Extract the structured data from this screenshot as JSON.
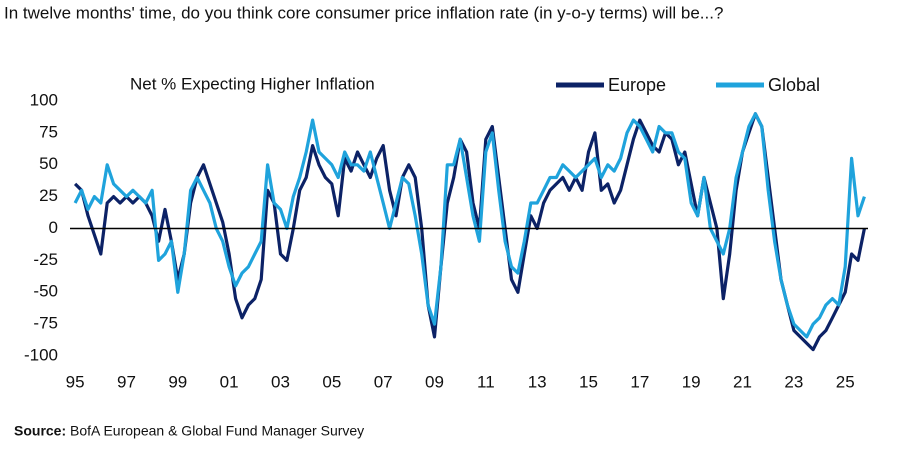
{
  "chart_data": {
    "type": "line",
    "title": "In twelve months' time, do you think core consumer price inflation rate (in y-o-y terms) will be...?",
    "subtitle": "Net % Expecting Higher Inflation",
    "source_label": "Source:",
    "source_text": "BofA European & Global Fund Manager Survey",
    "x": [
      1995,
      1995.25,
      1995.5,
      1995.75,
      1996,
      1996.25,
      1996.5,
      1996.75,
      1997,
      1997.25,
      1997.5,
      1997.75,
      1998,
      1998.25,
      1998.5,
      1998.75,
      1999,
      1999.25,
      1999.5,
      1999.75,
      2000,
      2000.25,
      2000.5,
      2000.75,
      2001,
      2001.25,
      2001.5,
      2001.75,
      2002,
      2002.25,
      2002.5,
      2002.75,
      2003,
      2003.25,
      2003.5,
      2003.75,
      2004,
      2004.25,
      2004.5,
      2004.75,
      2005,
      2005.25,
      2005.5,
      2005.75,
      2006,
      2006.25,
      2006.5,
      2006.75,
      2007,
      2007.25,
      2007.5,
      2007.75,
      2008,
      2008.25,
      2008.5,
      2008.75,
      2009,
      2009.25,
      2009.5,
      2009.75,
      2010,
      2010.25,
      2010.5,
      2010.75,
      2011,
      2011.25,
      2011.5,
      2011.75,
      2012,
      2012.25,
      2012.5,
      2012.75,
      2013,
      2013.25,
      2013.5,
      2013.75,
      2014,
      2014.25,
      2014.5,
      2014.75,
      2015,
      2015.25,
      2015.5,
      2015.75,
      2016,
      2016.25,
      2016.5,
      2016.75,
      2017,
      2017.25,
      2017.5,
      2017.75,
      2018,
      2018.25,
      2018.5,
      2018.75,
      2019,
      2019.25,
      2019.5,
      2019.75,
      2020,
      2020.25,
      2020.5,
      2020.75,
      2021,
      2021.25,
      2021.5,
      2021.75,
      2022,
      2022.25,
      2022.5,
      2022.75,
      2023,
      2023.25,
      2023.5,
      2023.75,
      2024,
      2024.25,
      2024.5,
      2024.75,
      2025,
      2025.25,
      2025.5,
      2025.75
    ],
    "series": [
      {
        "name": "Europe",
        "color": "#0c2266",
        "values": [
          35,
          30,
          10,
          -5,
          -20,
          20,
          25,
          20,
          25,
          20,
          25,
          20,
          10,
          -10,
          15,
          -10,
          -40,
          -20,
          20,
          40,
          50,
          35,
          20,
          5,
          -20,
          -55,
          -70,
          -60,
          -55,
          -40,
          30,
          20,
          -20,
          -25,
          0,
          30,
          40,
          65,
          50,
          40,
          35,
          10,
          55,
          45,
          60,
          50,
          40,
          55,
          65,
          30,
          10,
          40,
          50,
          40,
          0,
          -60,
          -85,
          -30,
          20,
          40,
          70,
          60,
          20,
          0,
          70,
          80,
          40,
          0,
          -40,
          -50,
          -20,
          10,
          0,
          20,
          30,
          35,
          40,
          30,
          40,
          30,
          60,
          75,
          30,
          35,
          20,
          30,
          50,
          70,
          85,
          75,
          65,
          60,
          75,
          70,
          50,
          60,
          35,
          10,
          40,
          20,
          0,
          -55,
          -20,
          30,
          60,
          75,
          90,
          80,
          40,
          0,
          -40,
          -60,
          -80,
          -85,
          -90,
          -95,
          -85,
          -80,
          -70,
          -60,
          -50,
          -20,
          -25,
          0
        ]
      },
      {
        "name": "Global",
        "color": "#1fa3dc",
        "values": [
          20,
          30,
          15,
          25,
          20,
          50,
          35,
          30,
          25,
          30,
          25,
          20,
          30,
          -25,
          -20,
          -10,
          -50,
          -20,
          30,
          40,
          30,
          20,
          0,
          -10,
          -30,
          -45,
          -35,
          -30,
          -20,
          -10,
          50,
          20,
          15,
          0,
          25,
          40,
          60,
          85,
          60,
          55,
          50,
          40,
          60,
          50,
          50,
          45,
          60,
          40,
          20,
          0,
          20,
          40,
          35,
          10,
          -20,
          -60,
          -75,
          -30,
          50,
          50,
          70,
          40,
          10,
          -10,
          60,
          75,
          30,
          -10,
          -30,
          -35,
          -10,
          20,
          20,
          30,
          40,
          40,
          50,
          45,
          40,
          45,
          50,
          55,
          40,
          50,
          45,
          55,
          75,
          85,
          80,
          70,
          60,
          80,
          75,
          75,
          60,
          55,
          20,
          10,
          40,
          0,
          -10,
          -20,
          0,
          40,
          60,
          80,
          90,
          80,
          30,
          -10,
          -40,
          -60,
          -75,
          -80,
          -85,
          -75,
          -70,
          -60,
          -55,
          -60,
          -30,
          55,
          10,
          25
        ]
      }
    ],
    "xlim": [
      1994.8,
      2026.2
    ],
    "xticks": [
      {
        "value": 1995,
        "label": "95"
      },
      {
        "value": 1997,
        "label": "97"
      },
      {
        "value": 1999,
        "label": "99"
      },
      {
        "value": 2001,
        "label": "01"
      },
      {
        "value": 2003,
        "label": "03"
      },
      {
        "value": 2005,
        "label": "05"
      },
      {
        "value": 2007,
        "label": "07"
      },
      {
        "value": 2009,
        "label": "09"
      },
      {
        "value": 2011,
        "label": "11"
      },
      {
        "value": 2013,
        "label": "13"
      },
      {
        "value": 2015,
        "label": "15"
      },
      {
        "value": 2017,
        "label": "17"
      },
      {
        "value": 2019,
        "label": "19"
      },
      {
        "value": 2021,
        "label": "21"
      },
      {
        "value": 2023,
        "label": "23"
      },
      {
        "value": 2025,
        "label": "25"
      }
    ],
    "ylim": [
      -100,
      100
    ],
    "yticks": [
      100,
      75,
      50,
      25,
      0,
      -25,
      -50,
      -75,
      -100
    ],
    "baseline": 0,
    "grid": false,
    "legend": "top-right"
  }
}
